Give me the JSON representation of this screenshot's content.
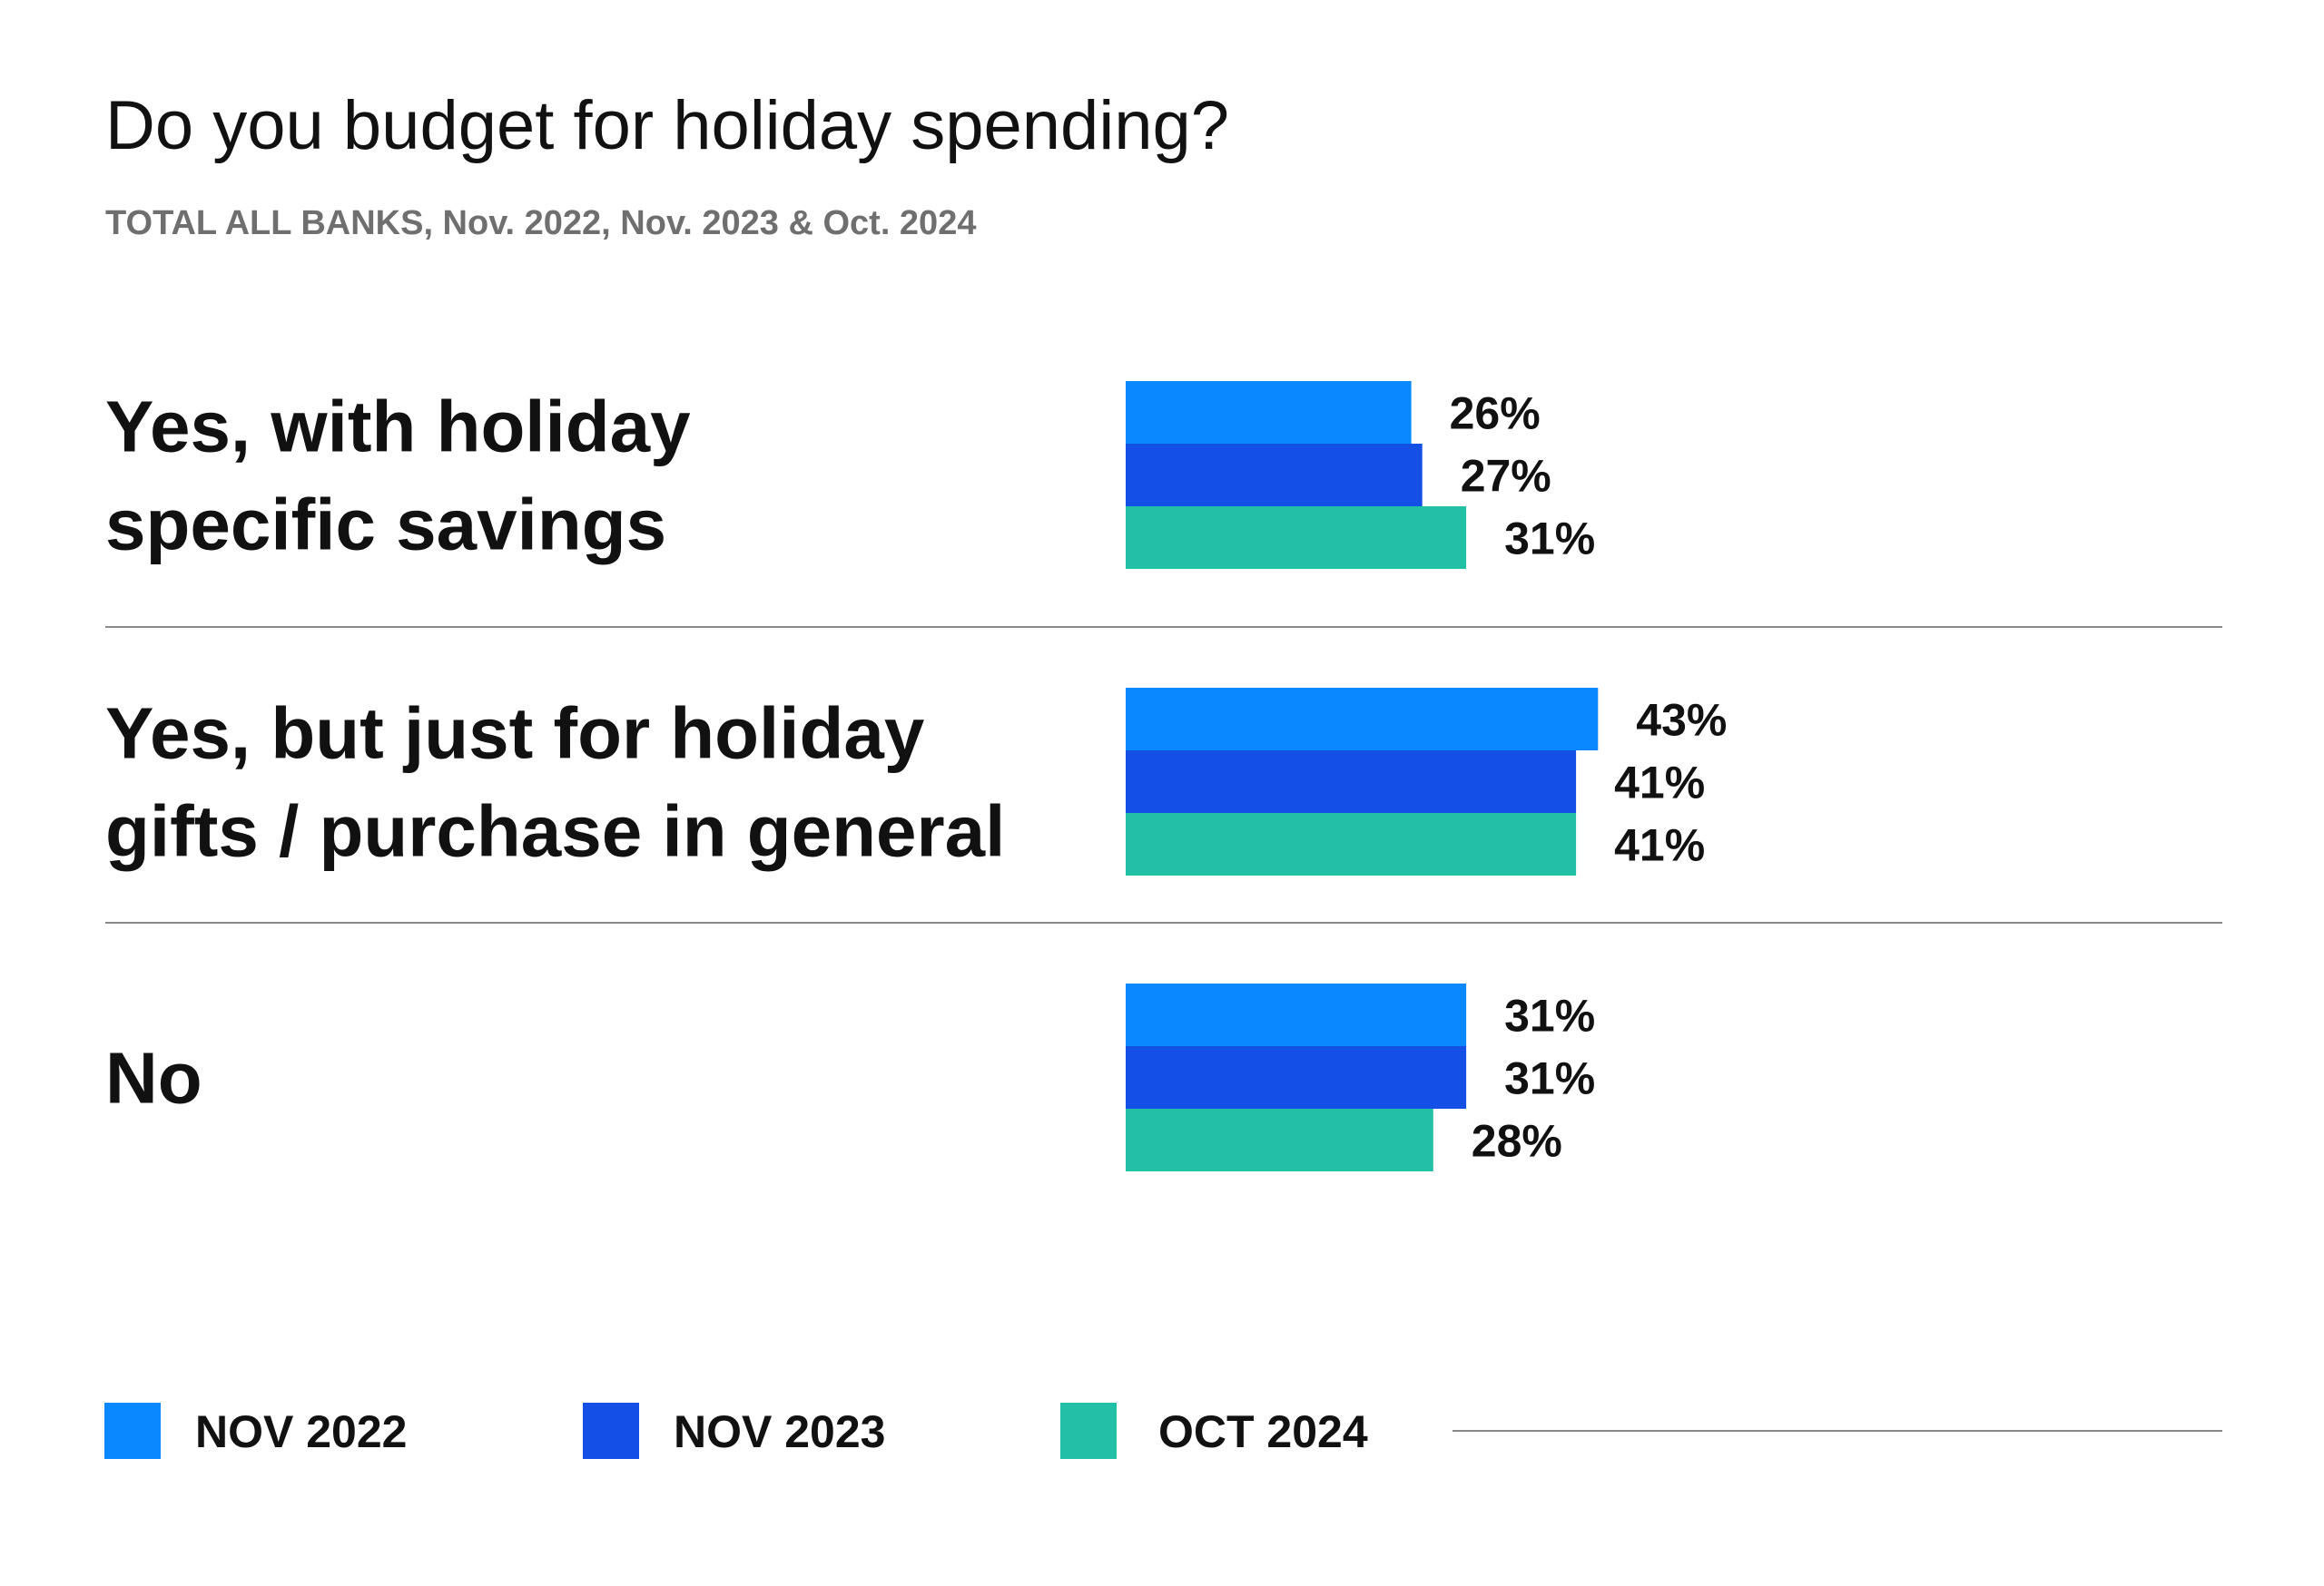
{
  "chart_data": {
    "type": "bar",
    "orientation": "horizontal",
    "title": "Do you budget for holiday spending?",
    "subtitle": "TOTAL ALL BANKS, Nov. 2022, Nov. 2023 & Oct. 2024",
    "categories": [
      [
        "Yes, with holiday",
        "specific savings"
      ],
      [
        "Yes, but just for holiday",
        "gifts / purchase in general"
      ],
      [
        "No"
      ]
    ],
    "series": [
      {
        "name": "NOV 2022",
        "color": "#0A88FF",
        "values": [
          26,
          43,
          31
        ]
      },
      {
        "name": "NOV 2023",
        "color": "#1450E6",
        "values": [
          27,
          41,
          31
        ]
      },
      {
        "name": "OCT 2024",
        "color": "#22C1A6",
        "values": [
          31,
          41,
          28
        ]
      }
    ],
    "value_suffix": "%",
    "xlim": [
      0,
      100
    ],
    "grid": false,
    "legend_position": "bottom-left"
  }
}
